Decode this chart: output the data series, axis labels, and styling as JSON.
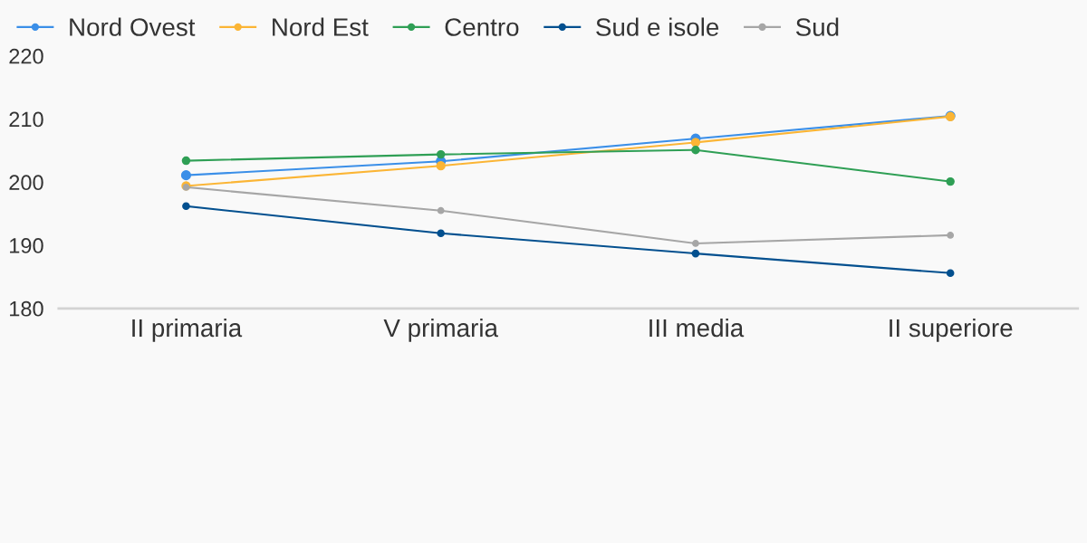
{
  "chart_data": {
    "type": "line",
    "categories": [
      "II primaria",
      "V primaria",
      "III media",
      "II superiore"
    ],
    "series": [
      {
        "name": "Nord Ovest",
        "color": "#3b8fe8",
        "values": [
          201.1,
          203.3,
          206.9,
          210.5
        ]
      },
      {
        "name": "Nord Est",
        "color": "#fbb535",
        "values": [
          199.4,
          202.6,
          206.3,
          210.4
        ]
      },
      {
        "name": "Centro",
        "color": "#2f9f55",
        "values": [
          203.4,
          204.4,
          205.1,
          200.1
        ]
      },
      {
        "name": "Sud e isole",
        "color": "#03508f",
        "values": [
          196.2,
          191.9,
          188.7,
          185.6
        ]
      },
      {
        "name": "Sud",
        "color": "#a6a6a6",
        "values": [
          199.2,
          195.5,
          190.3,
          191.6
        ]
      }
    ],
    "ylim": [
      180,
      220
    ],
    "yticks": [
      180,
      190,
      200,
      210,
      220
    ],
    "grid": false,
    "legend": "top left",
    "marker": "circle",
    "line_style": "solid"
  }
}
